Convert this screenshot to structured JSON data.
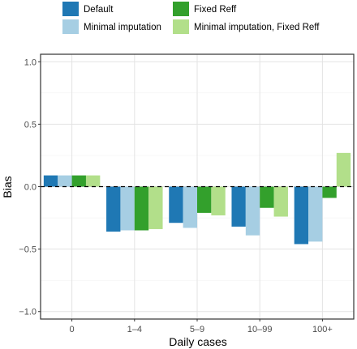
{
  "chart_data": {
    "type": "bar",
    "xlabel": "Daily cases",
    "ylabel": "Bias",
    "categories": [
      "0",
      "1–4",
      "5–9",
      "10–99",
      "100+"
    ],
    "ylim": [
      -1.06,
      1.06
    ],
    "yticks": [
      -1.0,
      -0.5,
      0.0,
      0.5,
      1.0
    ],
    "ytick_labels": [
      "−1.0",
      "−0.5",
      "0.0",
      "0.5",
      "1.0"
    ],
    "grid": true,
    "reference_line": {
      "y": 0,
      "style": "dashed"
    },
    "legend_position": "top",
    "series": [
      {
        "name": "Default",
        "color": "#1f78b4",
        "values": [
          0.09,
          -0.36,
          -0.29,
          -0.32,
          -0.46
        ]
      },
      {
        "name": "Minimal imputation",
        "color": "#a6cee3",
        "values": [
          0.09,
          -0.35,
          -0.33,
          -0.39,
          -0.44
        ]
      },
      {
        "name": "Fixed Reff",
        "color": "#33a02c",
        "values": [
          0.09,
          -0.35,
          -0.21,
          -0.17,
          -0.09
        ]
      },
      {
        "name": "Minimal imputation, Fixed Reff",
        "color": "#b2df8a",
        "values": [
          0.09,
          -0.34,
          -0.23,
          -0.24,
          0.27
        ]
      }
    ]
  }
}
